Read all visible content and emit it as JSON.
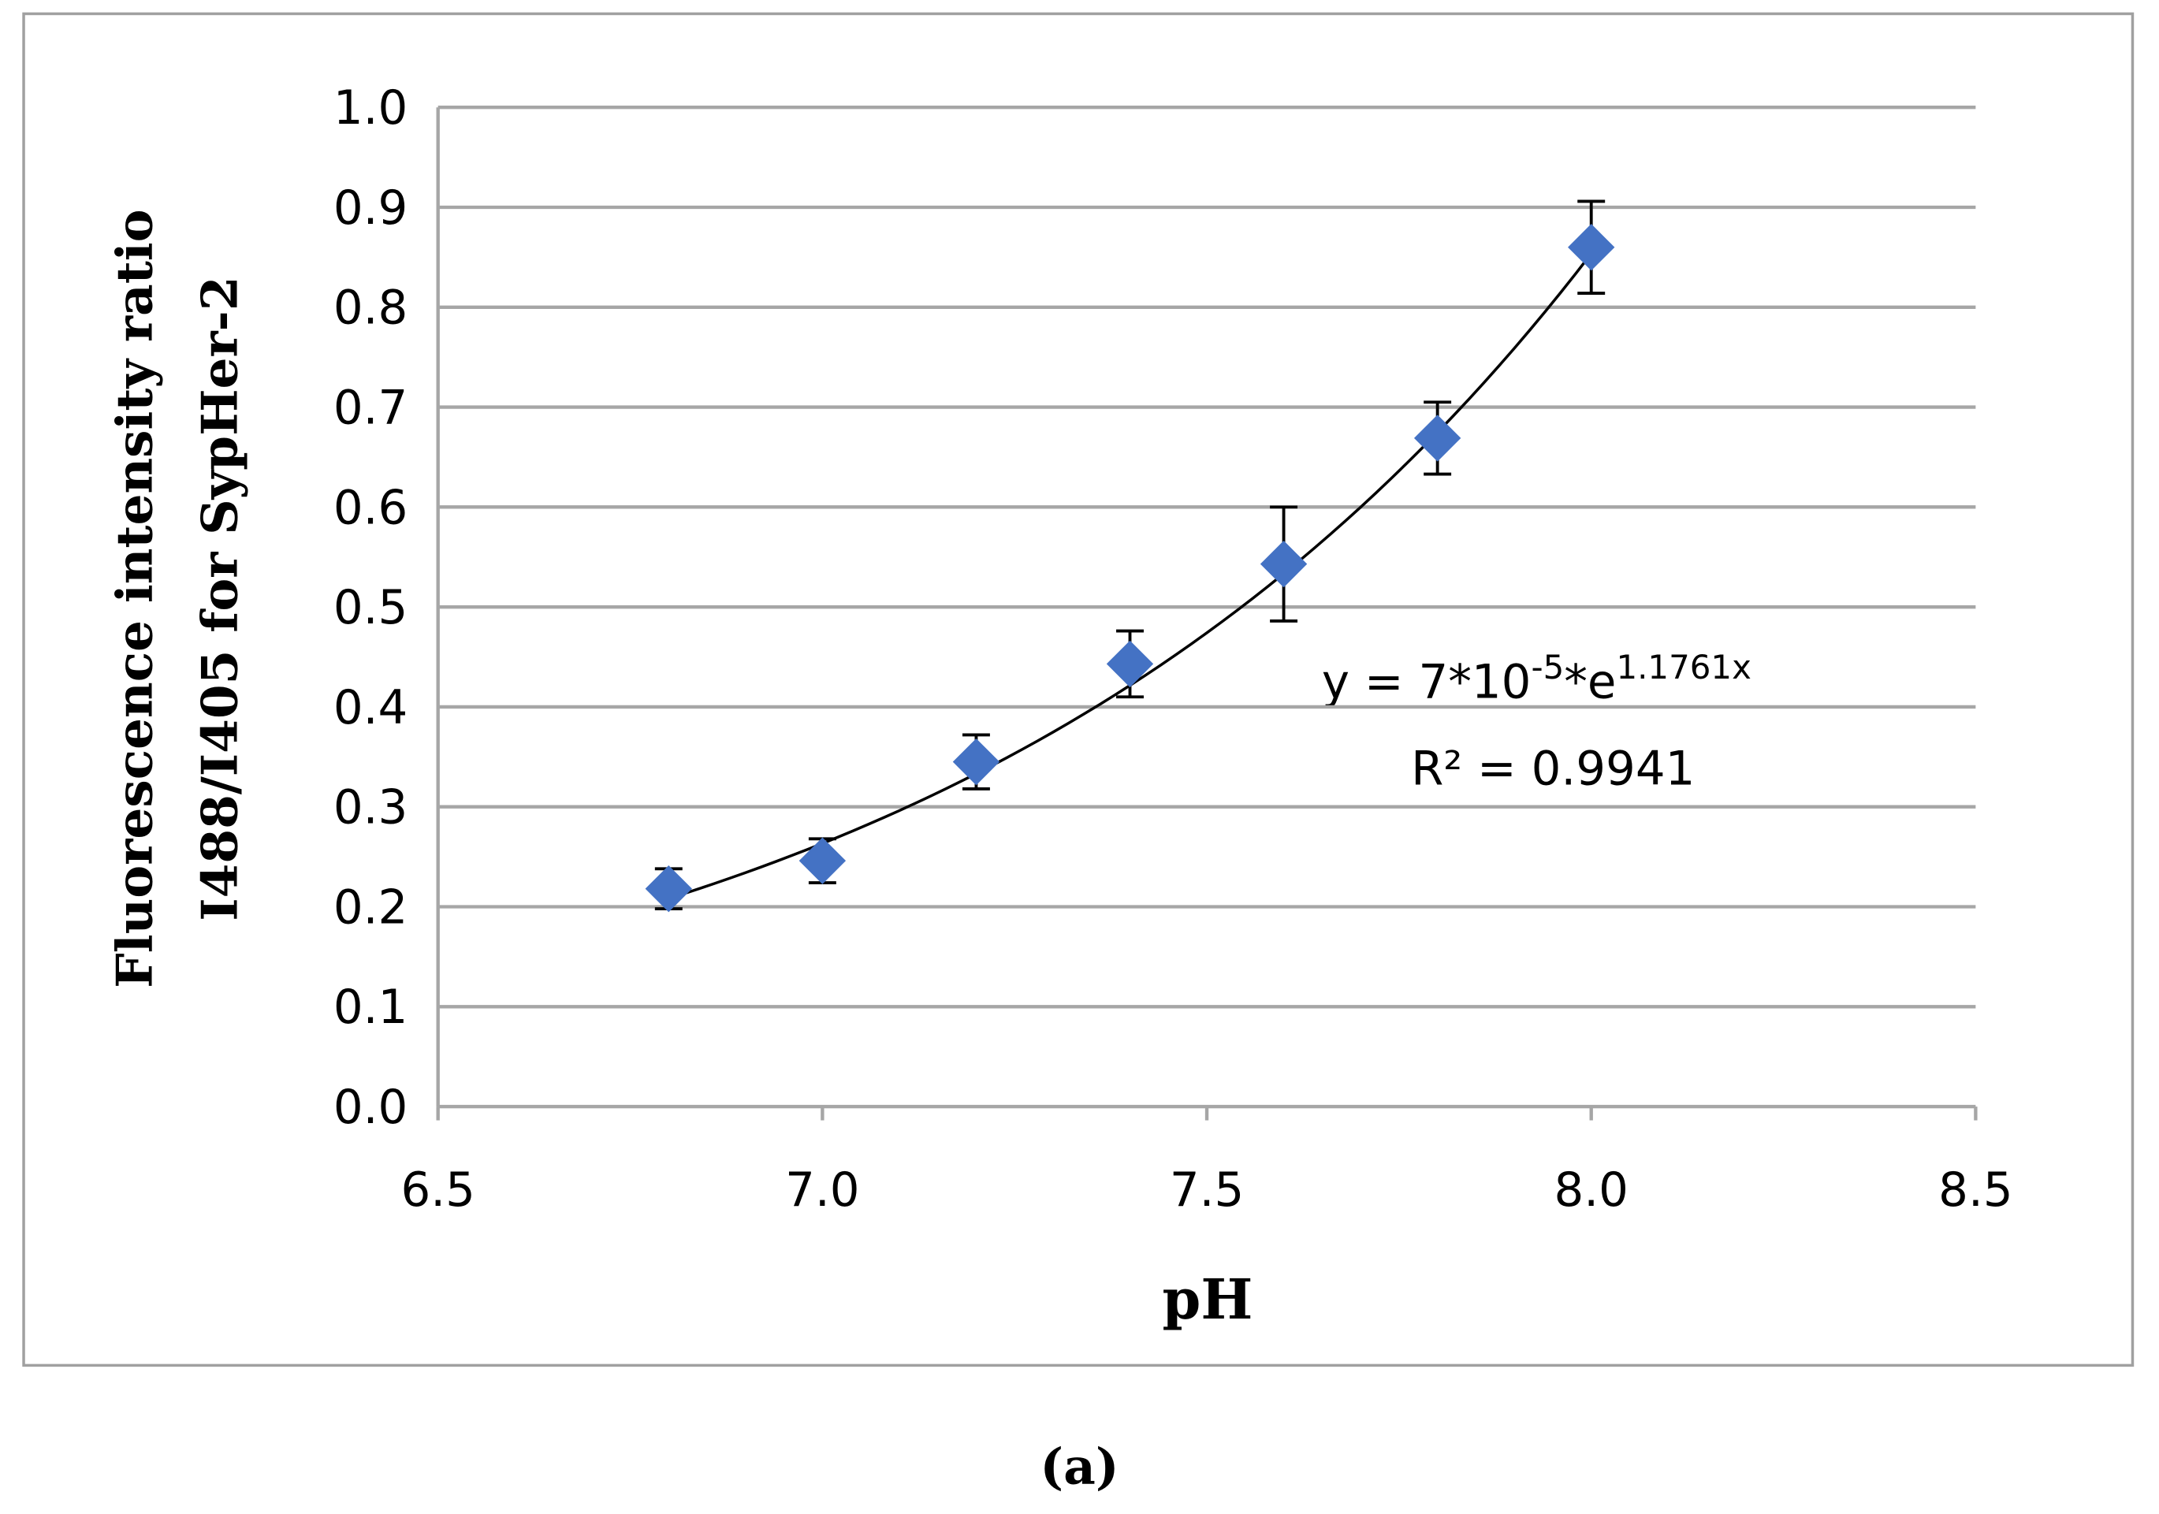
{
  "chart_data": {
    "type": "scatter",
    "xlabel": "pH",
    "ylabel": [
      "Fluorescence intensity ratio",
      "I488/I405 for SypHer-2"
    ],
    "caption": "(a)",
    "x": [
      6.8,
      7.0,
      7.2,
      7.4,
      7.6,
      7.8,
      8.0
    ],
    "values": [
      0.218,
      0.246,
      0.345,
      0.443,
      0.543,
      0.669,
      0.86
    ],
    "errors": [
      0.02,
      0.022,
      0.027,
      0.033,
      0.057,
      0.036,
      0.046
    ],
    "color": "#4472c4",
    "xlim": [
      6.5,
      8.5
    ],
    "xticks": [
      6.5,
      {
        "value": 7,
        "label": "7.0"
      },
      7.5,
      {
        "value": 8,
        "label": "8.0"
      },
      8.5
    ],
    "ylim": [
      0,
      1
    ],
    "yticks": [
      {
        "value": 0,
        "label": "0.0"
      },
      0.1,
      0.2,
      0.3,
      0.4,
      0.5,
      0.6,
      0.7,
      0.8,
      0.9,
      {
        "value": 1,
        "label": "1.0"
      }
    ],
    "grid": true,
    "trendline": {
      "type": "exponential",
      "a": 7e-05,
      "b": 1.1761,
      "equation": [
        "y = 7*10",
        "-5",
        "*e",
        "1.1761x"
      ],
      "r_squared": "R² = 0.9941"
    }
  }
}
